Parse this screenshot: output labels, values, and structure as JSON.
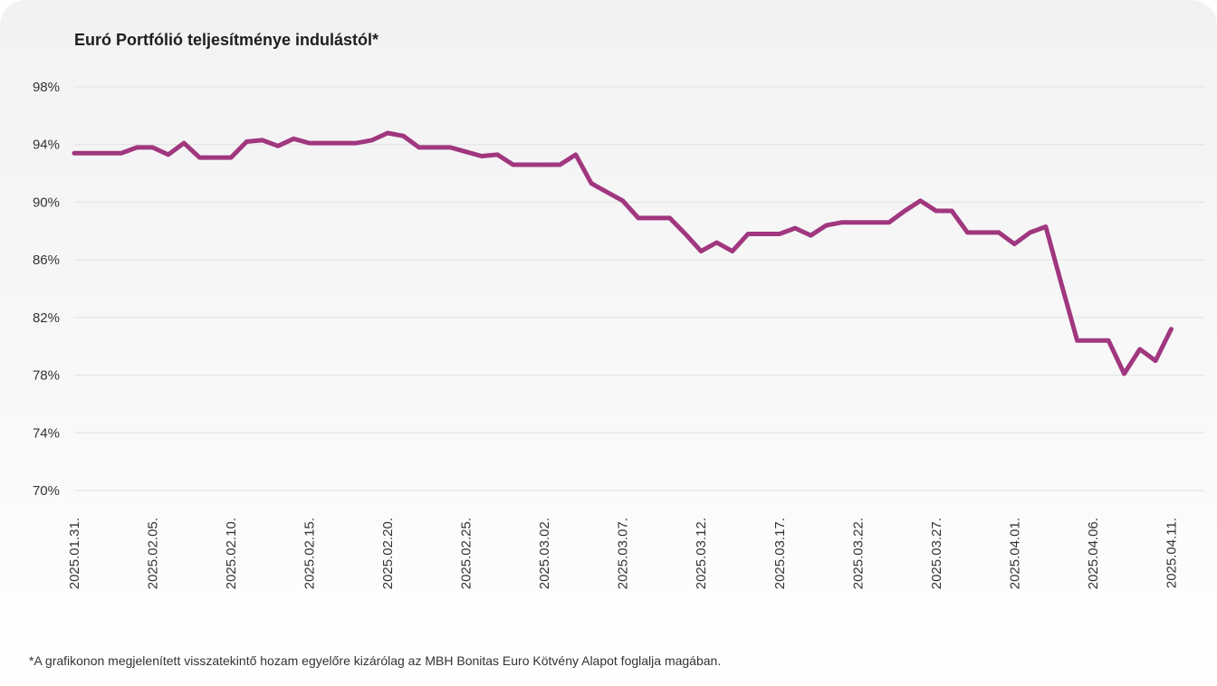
{
  "footnote": "*A grafikonon megjelenített visszatekintő hozam egyelőre kizárólag az MBH Bonitas Euro Kötvény Alapot foglalja magában.",
  "chart_data": {
    "type": "line",
    "title": "Euró Portfólió teljesítménye indulástól*",
    "xlabel": "",
    "ylabel": "",
    "ylim": [
      70,
      98
    ],
    "y_ticks": [
      98,
      94,
      90,
      86,
      82,
      78,
      74,
      70
    ],
    "y_tick_labels": [
      "98%",
      "94%",
      "90%",
      "86%",
      "82%",
      "78%",
      "74%",
      "70%"
    ],
    "x_tick_labels": [
      "2025.01.31.",
      "2025.02.05.",
      "2025.02.10.",
      "2025.02.15.",
      "2025.02.20.",
      "2025.02.25.",
      "2025.03.02.",
      "2025.03.07.",
      "2025.03.12.",
      "2025.03.17.",
      "2025.03.22.",
      "2025.03.27.",
      "2025.04.01.",
      "2025.04.06.",
      "2025.04.11."
    ],
    "x_start": "2025-01-31",
    "x_end": "2025-04-13",
    "grid": true,
    "line_color": "#a0377f",
    "series": [
      {
        "name": "",
        "points": [
          [
            "2025-01-31",
            93.4
          ],
          [
            "2025-02-01",
            93.4
          ],
          [
            "2025-02-02",
            93.4
          ],
          [
            "2025-02-03",
            93.4
          ],
          [
            "2025-02-04",
            93.8
          ],
          [
            "2025-02-05",
            93.8
          ],
          [
            "2025-02-06",
            93.3
          ],
          [
            "2025-02-07",
            94.1
          ],
          [
            "2025-02-08",
            93.1
          ],
          [
            "2025-02-09",
            93.1
          ],
          [
            "2025-02-10",
            93.1
          ],
          [
            "2025-02-11",
            94.2
          ],
          [
            "2025-02-12",
            94.3
          ],
          [
            "2025-02-13",
            93.9
          ],
          [
            "2025-02-14",
            94.4
          ],
          [
            "2025-02-15",
            94.1
          ],
          [
            "2025-02-16",
            94.1
          ],
          [
            "2025-02-17",
            94.1
          ],
          [
            "2025-02-18",
            94.1
          ],
          [
            "2025-02-19",
            94.3
          ],
          [
            "2025-02-20",
            94.8
          ],
          [
            "2025-02-21",
            94.6
          ],
          [
            "2025-02-22",
            93.8
          ],
          [
            "2025-02-23",
            93.8
          ],
          [
            "2025-02-24",
            93.8
          ],
          [
            "2025-02-25",
            93.5
          ],
          [
            "2025-02-26",
            93.2
          ],
          [
            "2025-02-27",
            93.3
          ],
          [
            "2025-02-28",
            92.6
          ],
          [
            "2025-03-01",
            92.6
          ],
          [
            "2025-03-02",
            92.6
          ],
          [
            "2025-03-03",
            92.6
          ],
          [
            "2025-03-04",
            93.3
          ],
          [
            "2025-03-05",
            91.3
          ],
          [
            "2025-03-06",
            90.7
          ],
          [
            "2025-03-07",
            90.1
          ],
          [
            "2025-03-08",
            88.9
          ],
          [
            "2025-03-09",
            88.9
          ],
          [
            "2025-03-10",
            88.9
          ],
          [
            "2025-03-11",
            87.8
          ],
          [
            "2025-03-12",
            86.6
          ],
          [
            "2025-03-13",
            87.2
          ],
          [
            "2025-03-14",
            86.6
          ],
          [
            "2025-03-15",
            87.8
          ],
          [
            "2025-03-16",
            87.8
          ],
          [
            "2025-03-17",
            87.8
          ],
          [
            "2025-03-18",
            88.2
          ],
          [
            "2025-03-19",
            87.7
          ],
          [
            "2025-03-20",
            88.4
          ],
          [
            "2025-03-21",
            88.6
          ],
          [
            "2025-03-22",
            88.6
          ],
          [
            "2025-03-23",
            88.6
          ],
          [
            "2025-03-24",
            88.6
          ],
          [
            "2025-03-25",
            89.4
          ],
          [
            "2025-03-26",
            90.1
          ],
          [
            "2025-03-27",
            89.4
          ],
          [
            "2025-03-28",
            89.4
          ],
          [
            "2025-03-29",
            87.9
          ],
          [
            "2025-03-30",
            87.9
          ],
          [
            "2025-03-31",
            87.9
          ],
          [
            "2025-04-01",
            87.1
          ],
          [
            "2025-04-02",
            87.9
          ],
          [
            "2025-04-03",
            88.3
          ],
          [
            "2025-04-04",
            84.3
          ],
          [
            "2025-04-05",
            80.4
          ],
          [
            "2025-04-06",
            80.4
          ],
          [
            "2025-04-07",
            80.4
          ],
          [
            "2025-04-08",
            78.1
          ],
          [
            "2025-04-09",
            79.8
          ],
          [
            "2025-04-10",
            79.0
          ],
          [
            "2025-04-11",
            81.2
          ]
        ]
      }
    ]
  }
}
